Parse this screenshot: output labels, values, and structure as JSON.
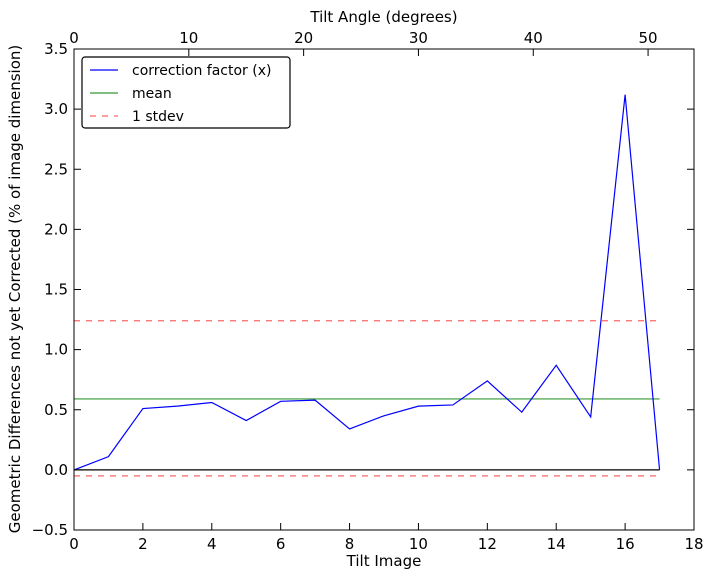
{
  "chart_data": {
    "type": "line",
    "xlabel": "Tilt Image",
    "x2label": "Tilt Angle (degrees)",
    "ylabel": "Geometric Differences not yet Corrected (% of image dimension)",
    "xlim": [
      0,
      18
    ],
    "x2lim": [
      0,
      54
    ],
    "ylim": [
      -0.5,
      3.5
    ],
    "x_ticks": [
      0,
      2,
      4,
      6,
      8,
      10,
      12,
      14,
      16,
      18
    ],
    "x_tick_labels": [
      "0",
      "2",
      "4",
      "6",
      "8",
      "10",
      "12",
      "14",
      "16",
      "18"
    ],
    "x2_ticks": [
      0,
      10,
      20,
      30,
      40,
      50
    ],
    "x2_tick_labels": [
      "0",
      "10",
      "20",
      "30",
      "40",
      "50"
    ],
    "y_ticks": [
      -0.5,
      0.0,
      0.5,
      1.0,
      1.5,
      2.0,
      2.5,
      3.0,
      3.5
    ],
    "y_tick_labels": [
      "−0.5",
      "0.0",
      "0.5",
      "1.0",
      "1.5",
      "2.0",
      "2.5",
      "3.0",
      "3.5"
    ],
    "grid": false,
    "legend_position": "top-left",
    "series": [
      {
        "name": "correction factor (x)",
        "style": "solid",
        "color": "#0000ff",
        "x": [
          0,
          1,
          2,
          3,
          4,
          5,
          6,
          7,
          8,
          9,
          10,
          11,
          12,
          13,
          14,
          15,
          16,
          17
        ],
        "y": [
          0.0,
          0.11,
          0.51,
          0.53,
          0.56,
          0.41,
          0.57,
          0.58,
          0.34,
          0.45,
          0.53,
          0.54,
          0.74,
          0.48,
          0.87,
          0.44,
          3.12,
          0.0
        ]
      },
      {
        "name": "mean",
        "style": "solid",
        "color": "#008000",
        "x": [
          0,
          17
        ],
        "y": [
          0.59,
          0.59
        ]
      },
      {
        "name": "1 stdev",
        "style": "dashed",
        "color": "#ff0000",
        "x": [
          0,
          17
        ],
        "y": [
          1.24,
          1.24
        ]
      },
      {
        "name": "1 stdev",
        "style": "dashed",
        "color": "#ff0000",
        "x": [
          0,
          17
        ],
        "y": [
          -0.05,
          -0.05
        ],
        "legend": false
      },
      {
        "name": "zero",
        "style": "solid",
        "color": "#000000",
        "x": [
          0,
          17
        ],
        "y": [
          0.0,
          0.0
        ],
        "legend": false
      }
    ]
  }
}
